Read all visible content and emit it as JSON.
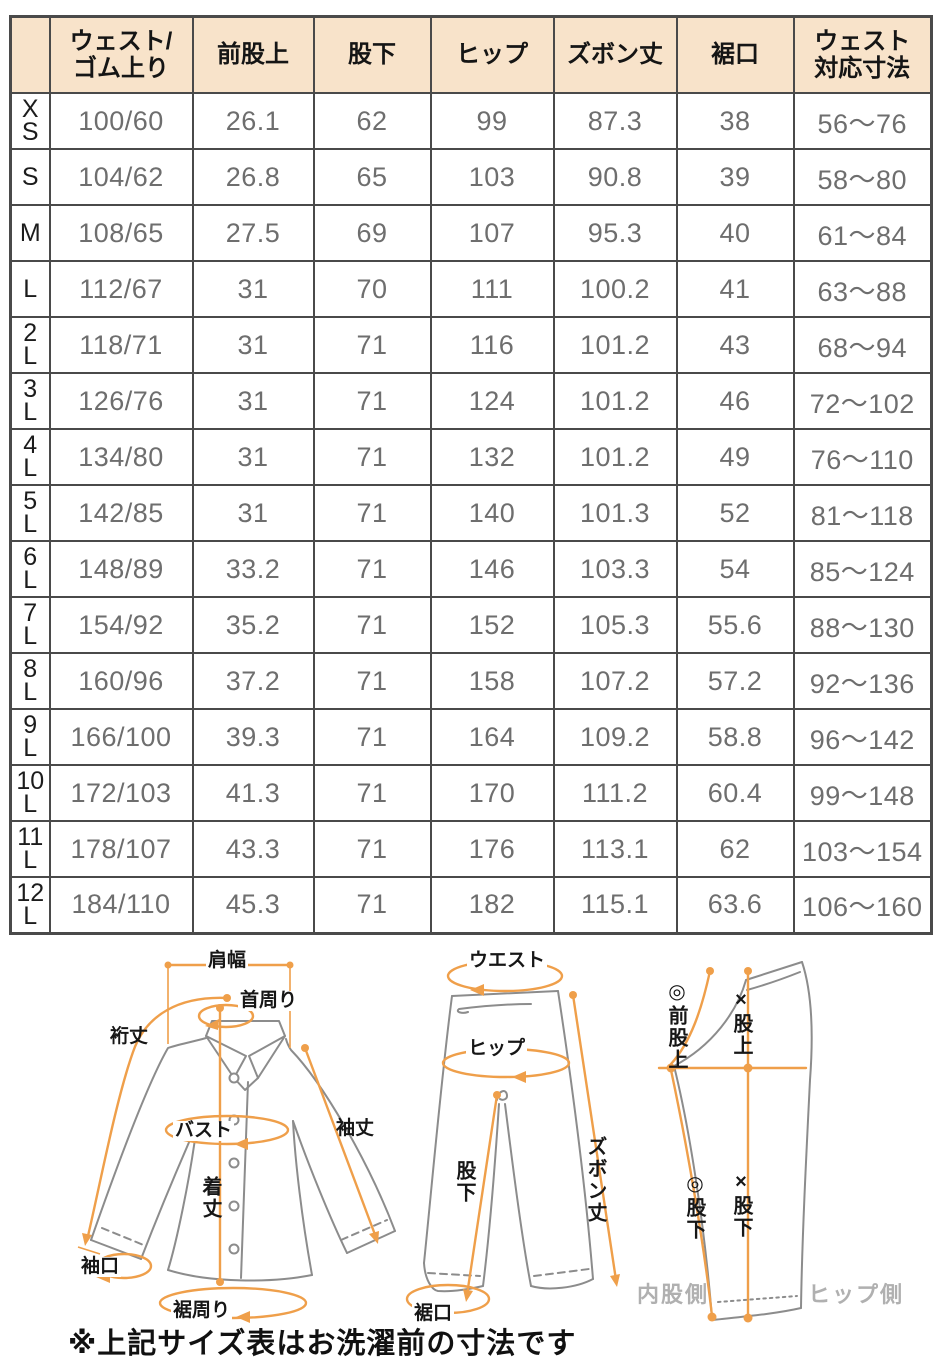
{
  "table": {
    "corner": "",
    "columns": [
      "ウェスト/\nゴム上り",
      "前股上",
      "股下",
      "ヒップ",
      "ズボン丈",
      "裾口",
      "ウェスト\n対応寸法"
    ],
    "rows": [
      {
        "size": "X\nS",
        "cells": [
          "100/60",
          "26.1",
          "62",
          "99",
          "87.3",
          "38",
          "56〜76"
        ]
      },
      {
        "size": "S",
        "cells": [
          "104/62",
          "26.8",
          "65",
          "103",
          "90.8",
          "39",
          "58〜80"
        ]
      },
      {
        "size": "M",
        "cells": [
          "108/65",
          "27.5",
          "69",
          "107",
          "95.3",
          "40",
          "61〜84"
        ]
      },
      {
        "size": "L",
        "cells": [
          "112/67",
          "31",
          "70",
          "111",
          "100.2",
          "41",
          "63〜88"
        ]
      },
      {
        "size": "2\nL",
        "cells": [
          "118/71",
          "31",
          "71",
          "116",
          "101.2",
          "43",
          "68〜94"
        ]
      },
      {
        "size": "3\nL",
        "cells": [
          "126/76",
          "31",
          "71",
          "124",
          "101.2",
          "46",
          "72〜102"
        ]
      },
      {
        "size": "4\nL",
        "cells": [
          "134/80",
          "31",
          "71",
          "132",
          "101.2",
          "49",
          "76〜110"
        ]
      },
      {
        "size": "5\nL",
        "cells": [
          "142/85",
          "31",
          "71",
          "140",
          "101.3",
          "52",
          "81〜118"
        ]
      },
      {
        "size": "6\nL",
        "cells": [
          "148/89",
          "33.2",
          "71",
          "146",
          "103.3",
          "54",
          "85〜124"
        ]
      },
      {
        "size": "7\nL",
        "cells": [
          "154/92",
          "35.2",
          "71",
          "152",
          "105.3",
          "55.6",
          "88〜130"
        ]
      },
      {
        "size": "8\nL",
        "cells": [
          "160/96",
          "37.2",
          "71",
          "158",
          "107.2",
          "57.2",
          "92〜136"
        ]
      },
      {
        "size": "9\nL",
        "cells": [
          "166/100",
          "39.3",
          "71",
          "164",
          "109.2",
          "58.8",
          "96〜142"
        ]
      },
      {
        "size": "10\nL",
        "cells": [
          "172/103",
          "41.3",
          "71",
          "170",
          "111.2",
          "60.4",
          "99〜148"
        ]
      },
      {
        "size": "11\nL",
        "cells": [
          "178/107",
          "43.3",
          "71",
          "176",
          "113.1",
          "62",
          "103〜154"
        ]
      },
      {
        "size": "12\nL",
        "cells": [
          "184/110",
          "45.3",
          "71",
          "182",
          "115.1",
          "63.6",
          "106〜160"
        ]
      }
    ]
  },
  "diagrams": {
    "shirt": {
      "shoulder_width": "肩幅",
      "neck_around": "首周り",
      "sleeve_from_back": "裄丈",
      "bust": "バスト",
      "sleeve_length": "袖丈",
      "body_length": "着丈",
      "cuff_opening": "袖口",
      "hem_around": "裾周り"
    },
    "pants_front": {
      "waist": "ウエスト",
      "hip": "ヒップ",
      "pants_length": "ズボン丈",
      "inseam": "股下",
      "hem_opening": "裾口"
    },
    "pants_side": {
      "front_rise": "◎前股上",
      "rise": "×股上",
      "inseam_inner": "◎股下",
      "inseam_hip": "×股下",
      "inner_side": "内股側",
      "hip_side": "ヒップ側"
    }
  },
  "note": "※上記サイズ表はお洗濯前の寸法です",
  "colors": {
    "header_bg": "#f8e3ca",
    "table_border": "#4a4a4a",
    "value_text": "#6e6e6e",
    "accent_orange": "#ef9f4a",
    "outline_gray": "#8c8c8c",
    "side_label_gray": "#b0b0b0"
  }
}
